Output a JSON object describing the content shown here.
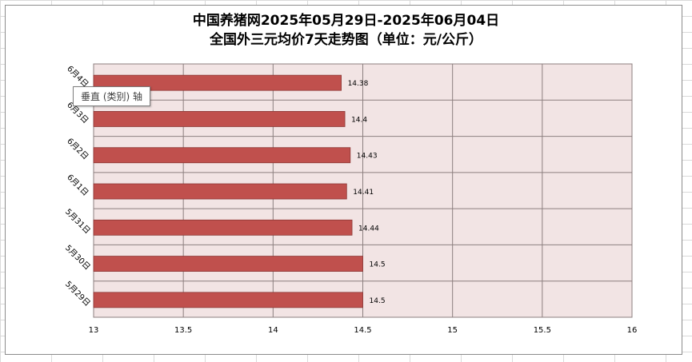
{
  "chart_data": {
    "type": "bar",
    "orientation": "horizontal",
    "title_line1": "中国养猪网2025年05月29日-2025年06月04日",
    "title_line2": "全国外三元均价7天走势图（单位：元/公斤）",
    "categories": [
      "6月4日",
      "6月3日",
      "6月2日",
      "6月1日",
      "5月31日",
      "5月30日",
      "5月29日"
    ],
    "values": [
      14.38,
      14.4,
      14.43,
      14.41,
      14.44,
      14.5,
      14.5
    ],
    "data_labels": [
      "14.38",
      "14.4",
      "14.43",
      "14.41",
      "14.44",
      "14.5",
      "14.5"
    ],
    "xlim": [
      13,
      16
    ],
    "x_ticks": [
      "13",
      "13.5",
      "14",
      "14.5",
      "15",
      "15.5",
      "16"
    ],
    "grid": true,
    "legend": "none",
    "colors": {
      "bar": "#c0504d",
      "plot_bg": "#f2e4e4",
      "grid": "#8c7f7f"
    }
  },
  "tooltip": {
    "text": "垂直 (类别) 轴"
  }
}
